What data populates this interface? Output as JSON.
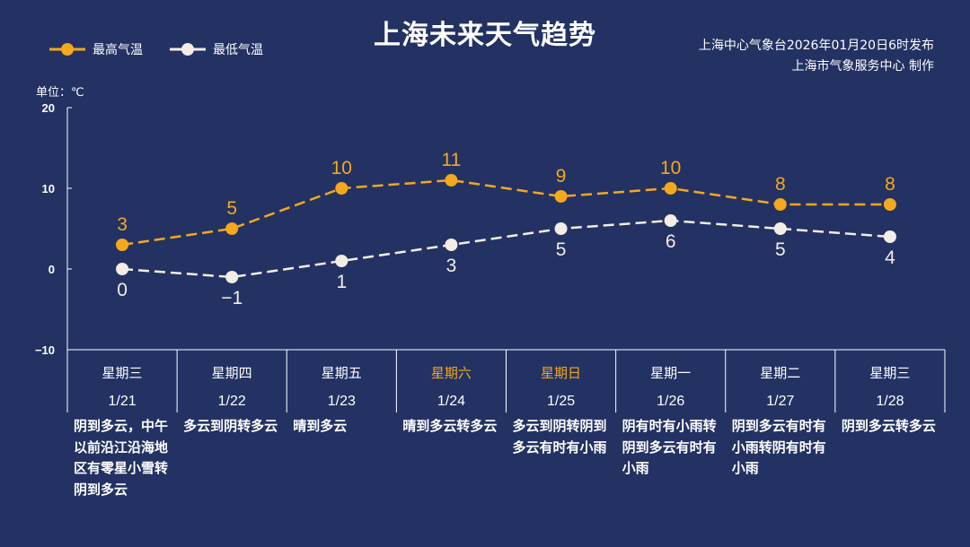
{
  "title": "上海未来天气趋势",
  "source_lines": [
    "上海中心气象台2026年01月20日6时发布",
    "上海市气象服务中心  制作"
  ],
  "unit_label": "单位：℃",
  "colors": {
    "background": "#233263",
    "high": "#f4a81d",
    "low": "#f2ede6",
    "weekend": "#f4a81d"
  },
  "chart_data": {
    "type": "line",
    "title": "上海未来天气趋势",
    "ylabel": "单位：℃",
    "ylim": [
      -10,
      20
    ],
    "yticks": [
      20,
      10,
      0,
      -10
    ],
    "legend_position": "top-left",
    "grid": false,
    "categories": [
      "1/21",
      "1/22",
      "1/23",
      "1/24",
      "1/25",
      "1/26",
      "1/27",
      "1/28"
    ],
    "weekdays": [
      "星期三",
      "星期四",
      "星期五",
      "星期六",
      "星期日",
      "星期一",
      "星期二",
      "星期三"
    ],
    "weekend": [
      false,
      false,
      false,
      true,
      true,
      false,
      false,
      false
    ],
    "series": [
      {
        "name": "最高气温",
        "values": [
          3,
          5,
          10,
          11,
          9,
          10,
          8,
          8
        ],
        "color": "#f4a81d"
      },
      {
        "name": "最低气温",
        "values": [
          0,
          -1,
          1,
          3,
          5,
          6,
          5,
          4
        ],
        "color": "#f2ede6"
      }
    ],
    "value_labels_low": [
      "0",
      "−1",
      "1",
      "3",
      "5",
      "6",
      "5",
      "4"
    ],
    "weather": [
      "阴到多云，中午以前沿江沿海地区有零星小雪转阴到多云",
      "多云到阴转多云",
      "晴到多云",
      "晴到多云转多云",
      "多云到阴转阴到多云有时有小雨",
      "阴有时有小雨转阴到多云有时有小雨",
      "阴到多云有时有小雨转阴有时有小雨",
      "阴到多云转多云"
    ]
  }
}
